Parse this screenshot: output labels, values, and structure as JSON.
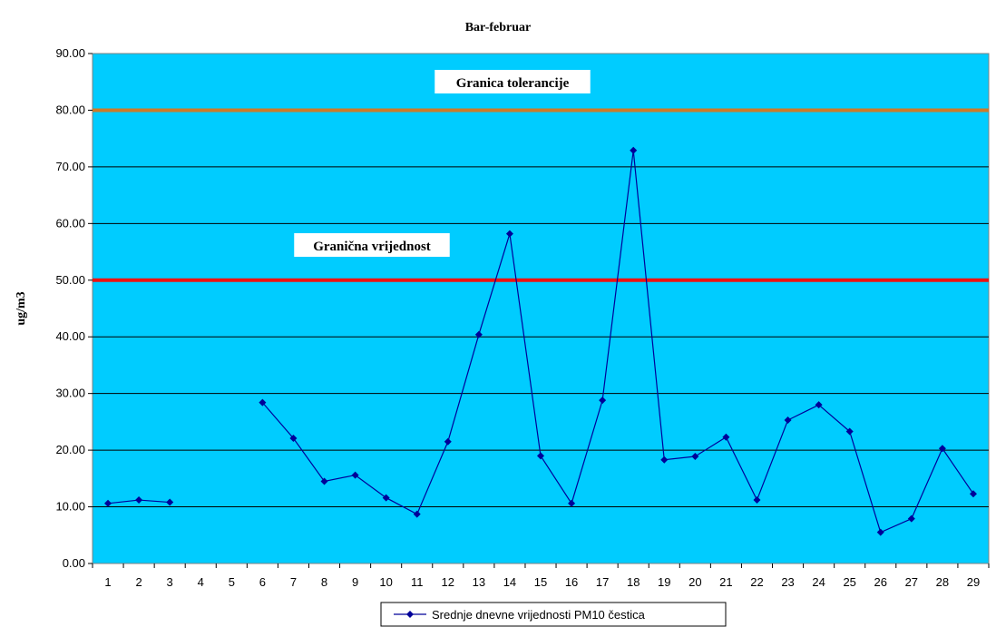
{
  "chart_data": {
    "type": "line",
    "title": "Bar-februar",
    "xlabel": "",
    "ylabel": "ug/m3",
    "ylim": [
      0,
      90
    ],
    "yticks": [
      "0.00",
      "10.00",
      "20.00",
      "30.00",
      "40.00",
      "50.00",
      "60.00",
      "70.00",
      "80.00",
      "90.00"
    ],
    "categories": [
      "1",
      "2",
      "3",
      "4",
      "5",
      "6",
      "7",
      "8",
      "9",
      "10",
      "11",
      "12",
      "13",
      "14",
      "15",
      "16",
      "17",
      "18",
      "19",
      "20",
      "21",
      "22",
      "23",
      "24",
      "25",
      "26",
      "27",
      "28",
      "29"
    ],
    "series": [
      {
        "name": "Srednje dnevne vrijednosti PM10 čestica",
        "values": [
          10.6,
          11.2,
          10.8,
          null,
          null,
          28.4,
          22.1,
          14.5,
          15.6,
          11.6,
          8.7,
          21.5,
          40.4,
          58.2,
          19.0,
          10.6,
          28.8,
          72.9,
          18.3,
          18.9,
          22.3,
          11.2,
          25.3,
          28.0,
          23.3,
          5.5,
          7.9,
          20.3,
          12.3
        ],
        "color": "#000099"
      }
    ],
    "reference_lines": [
      {
        "label": "Granica tolerancije",
        "value": 80,
        "color": "#cc7a29"
      },
      {
        "label": "Granična vrijednost",
        "value": 50,
        "color": "#ee1111"
      }
    ],
    "grid": true,
    "legend_position": "bottom",
    "plot_background": "#00ccff"
  }
}
